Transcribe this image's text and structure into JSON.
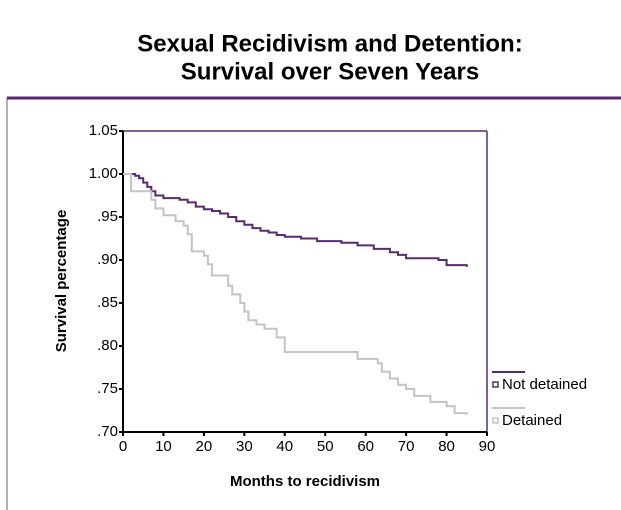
{
  "chart_data": {
    "type": "line",
    "step": "post",
    "title": [
      "Sexual Recidivism and Detention:",
      "Survival over Seven Years"
    ],
    "xlabel": "Months to recidivism",
    "ylabel": "Survival percentage",
    "xlim": [
      0,
      90
    ],
    "xticks": [
      0,
      10,
      20,
      30,
      40,
      50,
      60,
      70,
      80,
      90
    ],
    "ylim": [
      0.7,
      1.05
    ],
    "yticks": [
      {
        "value": 0.7,
        "label": ".70"
      },
      {
        "value": 0.75,
        "label": ".75"
      },
      {
        "value": 0.8,
        "label": ".80"
      },
      {
        "value": 0.85,
        "label": ".85"
      },
      {
        "value": 0.9,
        "label": ".90"
      },
      {
        "value": 0.95,
        "label": ".95"
      },
      {
        "value": 1,
        "label": "1.00"
      },
      1.05
    ],
    "legend": "right",
    "series": [
      {
        "name": "Not detained",
        "color": "#5a2a6e",
        "x": [
          0,
          3,
          4,
          5,
          6,
          7,
          8,
          10,
          14,
          16,
          18,
          20,
          22,
          24,
          26,
          28,
          30,
          32,
          34,
          36,
          38,
          40,
          44,
          48,
          54,
          58,
          62,
          66,
          68,
          70,
          78,
          80,
          85
        ],
        "values": [
          1.0,
          0.998,
          0.995,
          0.99,
          0.985,
          0.98,
          0.975,
          0.972,
          0.97,
          0.967,
          0.962,
          0.959,
          0.957,
          0.954,
          0.95,
          0.945,
          0.941,
          0.937,
          0.934,
          0.932,
          0.929,
          0.927,
          0.925,
          0.922,
          0.92,
          0.917,
          0.913,
          0.909,
          0.906,
          0.902,
          0.9,
          0.894,
          0.892
        ]
      },
      {
        "name": "Detained",
        "color": "#c4c4c4",
        "x": [
          0,
          2,
          7,
          8,
          10,
          13,
          15,
          16,
          17,
          20,
          21,
          22,
          26,
          27,
          29,
          30,
          31,
          33,
          35,
          38,
          40,
          57,
          58,
          63,
          64,
          66,
          68,
          70,
          72,
          76,
          80,
          82,
          85
        ],
        "values": [
          1.0,
          0.98,
          0.97,
          0.96,
          0.952,
          0.945,
          0.94,
          0.93,
          0.91,
          0.905,
          0.895,
          0.882,
          0.87,
          0.86,
          0.85,
          0.84,
          0.83,
          0.825,
          0.82,
          0.81,
          0.793,
          0.793,
          0.785,
          0.78,
          0.77,
          0.762,
          0.755,
          0.75,
          0.742,
          0.735,
          0.73,
          0.722,
          0.72
        ]
      }
    ]
  }
}
